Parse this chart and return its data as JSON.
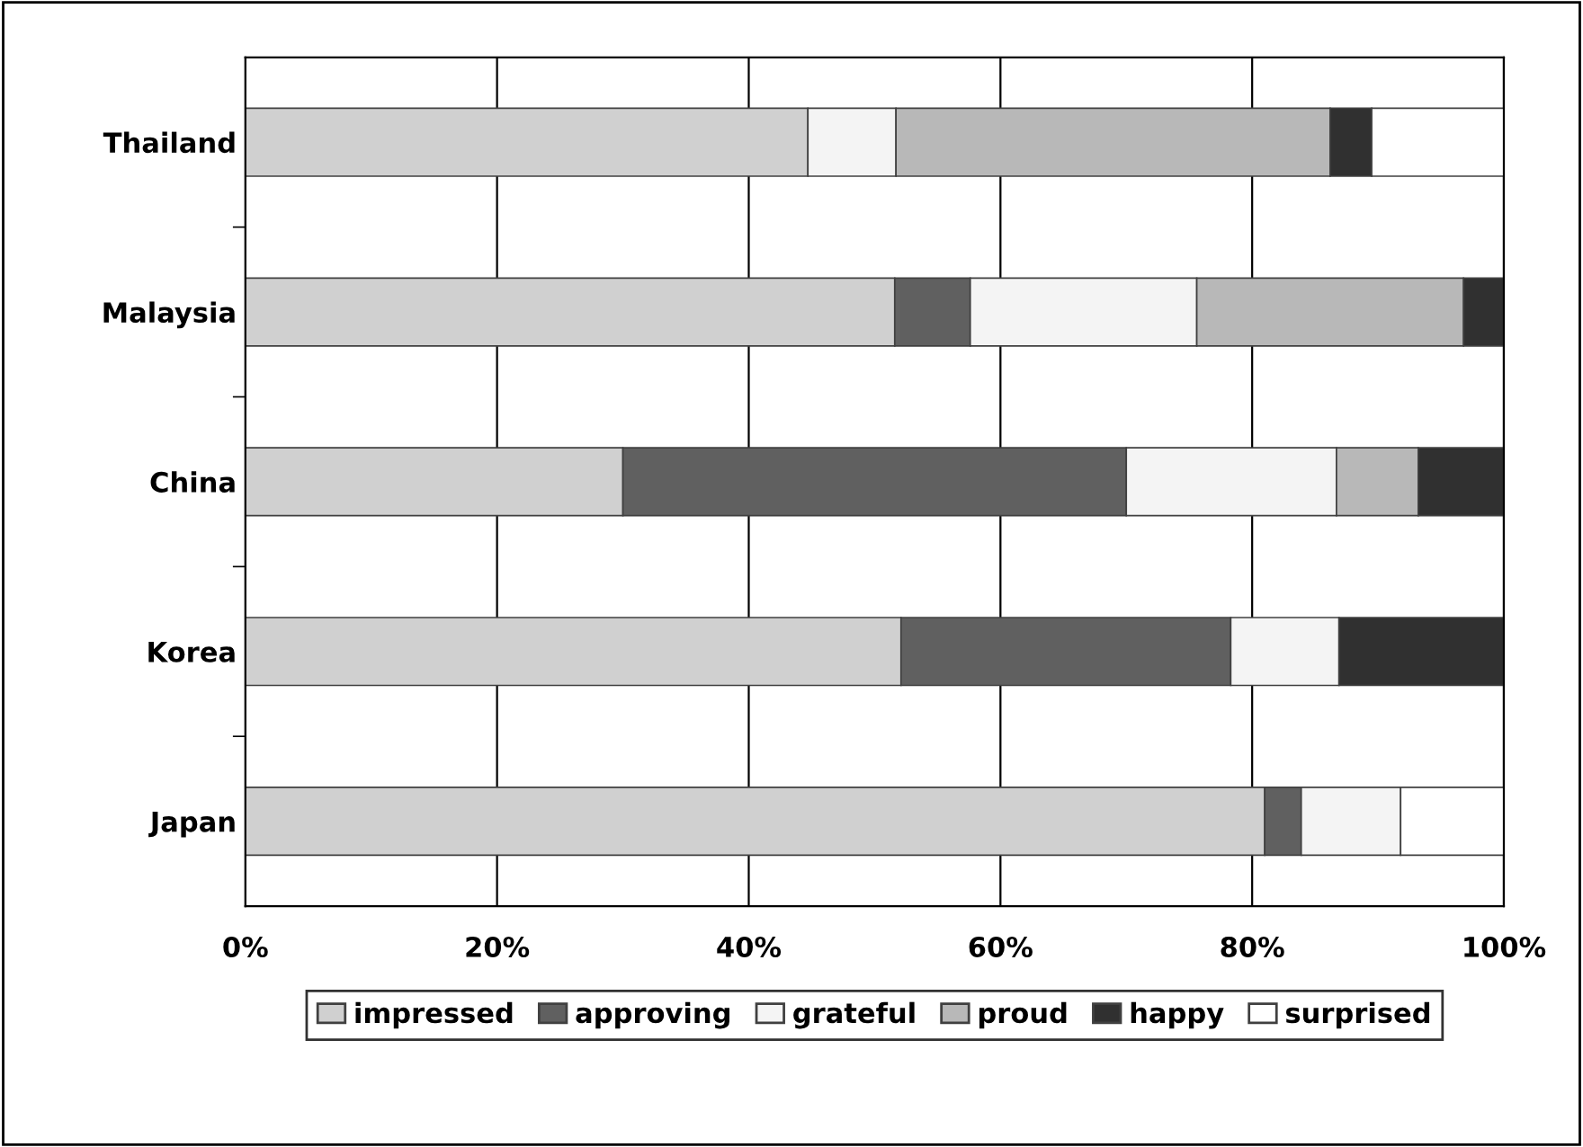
{
  "chart_data": {
    "type": "bar",
    "orientation": "horizontal",
    "stacked": true,
    "categories": [
      "Thailand",
      "Malaysia",
      "China",
      "Korea",
      "Japan"
    ],
    "series": [
      {
        "name": "impressed",
        "color": "#d0d0d0",
        "values": [
          44.7,
          51.6,
          30.0,
          52.1,
          81.0
        ]
      },
      {
        "name": "approving",
        "color": "#606060",
        "values": [
          null,
          6.0,
          40.0,
          26.2,
          2.9
        ]
      },
      {
        "name": "grateful",
        "color": "#f4f4f4",
        "values": [
          7.0,
          18.0,
          16.7,
          8.6,
          7.9
        ]
      },
      {
        "name": "proud",
        "color": "#b8b8b8",
        "values": [
          34.5,
          21.2,
          6.5,
          null,
          null
        ]
      },
      {
        "name": "happy",
        "color": "#303030",
        "values": [
          3.3,
          3.2,
          6.8,
          13.1,
          null
        ]
      },
      {
        "name": "surprised",
        "color": "#ffffff",
        "values": [
          10.5,
          null,
          null,
          null,
          8.2
        ]
      }
    ],
    "xlim": [
      0,
      100
    ],
    "xticks": [
      {
        "value": 0,
        "label": "0%"
      },
      {
        "value": 20,
        "label": "20%"
      },
      {
        "value": 40,
        "label": "40%"
      },
      {
        "value": 60,
        "label": "60%"
      },
      {
        "value": 80,
        "label": "80%"
      },
      {
        "value": 100,
        "label": "100%"
      }
    ],
    "grid": "x",
    "legend": "bottom"
  }
}
